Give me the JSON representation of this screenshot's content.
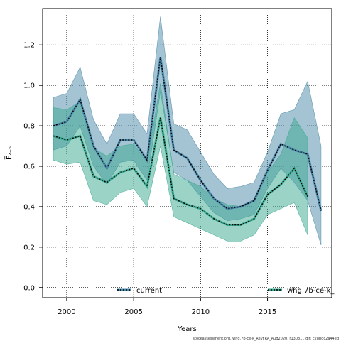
{
  "chart_data": {
    "type": "line",
    "xlabel": "Years",
    "ylabel": "F̅₂₋₅",
    "xlim": [
      1998.2,
      2019.8
    ],
    "ylim": [
      -0.05,
      1.38
    ],
    "x_ticks": [
      2000,
      2005,
      2010,
      2015
    ],
    "y_ticks": [
      0.0,
      0.2,
      0.4,
      0.6,
      0.8,
      1.0,
      1.2
    ],
    "grid": true,
    "legend_placement": "bottom",
    "series": [
      {
        "name": "current",
        "color": "#4a87a8",
        "line_color": "#000000",
        "x": [
          1999,
          2000,
          2001,
          2002,
          2003,
          2004,
          2005,
          2006,
          2007,
          2008,
          2009,
          2010,
          2011,
          2012,
          2013,
          2014,
          2015,
          2016,
          2017,
          2018,
          2019
        ],
        "values": [
          0.8,
          0.82,
          0.93,
          0.7,
          0.59,
          0.73,
          0.73,
          0.63,
          1.14,
          0.68,
          0.64,
          0.53,
          0.44,
          0.39,
          0.4,
          0.43,
          0.58,
          0.71,
          0.68,
          0.66,
          0.38
        ],
        "upper": [
          0.94,
          0.96,
          1.09,
          0.83,
          0.71,
          0.86,
          0.86,
          0.76,
          1.34,
          0.81,
          0.78,
          0.67,
          0.56,
          0.49,
          0.5,
          0.52,
          0.67,
          0.86,
          0.88,
          1.02,
          0.7
        ],
        "lower": [
          0.68,
          0.7,
          0.8,
          0.6,
          0.51,
          0.62,
          0.63,
          0.53,
          0.97,
          0.57,
          0.53,
          0.45,
          0.37,
          0.33,
          0.34,
          0.36,
          0.49,
          0.59,
          0.52,
          0.43,
          0.21
        ]
      },
      {
        "name": "whg.7b-ce-k_",
        "color": "#3aa890",
        "line_color": "#000000",
        "x": [
          1999,
          2000,
          2001,
          2002,
          2003,
          2004,
          2005,
          2006,
          2007,
          2008,
          2009,
          2010,
          2011,
          2012,
          2013,
          2014,
          2015,
          2016,
          2017,
          2018
        ],
        "values": [
          0.75,
          0.73,
          0.75,
          0.55,
          0.52,
          0.57,
          0.59,
          0.5,
          0.84,
          0.44,
          0.41,
          0.39,
          0.34,
          0.31,
          0.31,
          0.34,
          0.46,
          0.51,
          0.59,
          0.45
        ],
        "upper": [
          0.89,
          0.88,
          0.92,
          0.69,
          0.65,
          0.7,
          0.71,
          0.62,
          1.01,
          0.56,
          0.53,
          0.5,
          0.44,
          0.41,
          0.4,
          0.43,
          0.57,
          0.66,
          0.84,
          0.74
        ],
        "lower": [
          0.63,
          0.61,
          0.62,
          0.43,
          0.41,
          0.47,
          0.49,
          0.4,
          0.7,
          0.35,
          0.32,
          0.29,
          0.26,
          0.23,
          0.23,
          0.26,
          0.36,
          0.39,
          0.42,
          0.26
        ]
      }
    ]
  },
  "footer": "stockassessment.org, whg.7b-ce-k_RevFRA_Aug2020, r13031 , git: c28bdc2a44ed"
}
